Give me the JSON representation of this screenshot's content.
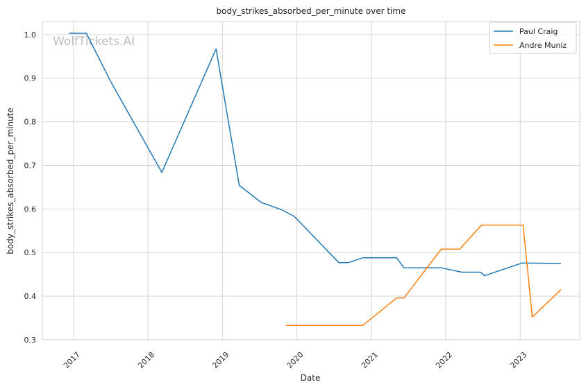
{
  "chart_data": {
    "type": "line",
    "title": "body_strikes_absorbed_per_minute over time",
    "xlabel": "Date",
    "ylabel": "body_strikes_absorbed_per_minute",
    "watermark": "WolfTickets.AI",
    "x_ticks": [
      "2017",
      "2018",
      "2019",
      "2020",
      "2021",
      "2022",
      "2023"
    ],
    "y_ticks": [
      "0.3",
      "0.4",
      "0.5",
      "0.6",
      "0.7",
      "0.8",
      "0.9",
      "1.0"
    ],
    "xlim": [
      "2016-08-01",
      "2023-10-20"
    ],
    "ylim": [
      0.3,
      1.03
    ],
    "grid": true,
    "legend": "top-right",
    "series": [
      {
        "name": "Paul Craig",
        "color": "#1f77b4",
        "points": [
          [
            "2016-12-10",
            1.003
          ],
          [
            "2017-03-05",
            1.003
          ],
          [
            "2017-07-01",
            0.893
          ],
          [
            "2018-03-10",
            0.684
          ],
          [
            "2018-12-01",
            0.967
          ],
          [
            "2019-03-25",
            0.654
          ],
          [
            "2019-07-10",
            0.615
          ],
          [
            "2019-10-20",
            0.598
          ],
          [
            "2019-12-20",
            0.583
          ],
          [
            "2020-07-25",
            0.477
          ],
          [
            "2020-09-10",
            0.477
          ],
          [
            "2020-11-20",
            0.488
          ],
          [
            "2021-05-05",
            0.488
          ],
          [
            "2021-06-10",
            0.465
          ],
          [
            "2021-12-10",
            0.465
          ],
          [
            "2022-03-20",
            0.455
          ],
          [
            "2022-06-20",
            0.455
          ],
          [
            "2022-07-10",
            0.447
          ],
          [
            "2023-01-10",
            0.476
          ],
          [
            "2023-07-20",
            0.475
          ]
        ]
      },
      {
        "name": "Andre Muniz",
        "color": "#ff7f0e",
        "points": [
          [
            "2019-11-10",
            0.333
          ],
          [
            "2020-11-20",
            0.333
          ],
          [
            "2021-05-05",
            0.396
          ],
          [
            "2021-06-10",
            0.396
          ],
          [
            "2021-12-10",
            0.508
          ],
          [
            "2022-03-10",
            0.508
          ],
          [
            "2022-06-25",
            0.563
          ],
          [
            "2023-01-15",
            0.563
          ],
          [
            "2023-03-01",
            0.352
          ],
          [
            "2023-07-20",
            0.415
          ]
        ]
      }
    ]
  }
}
